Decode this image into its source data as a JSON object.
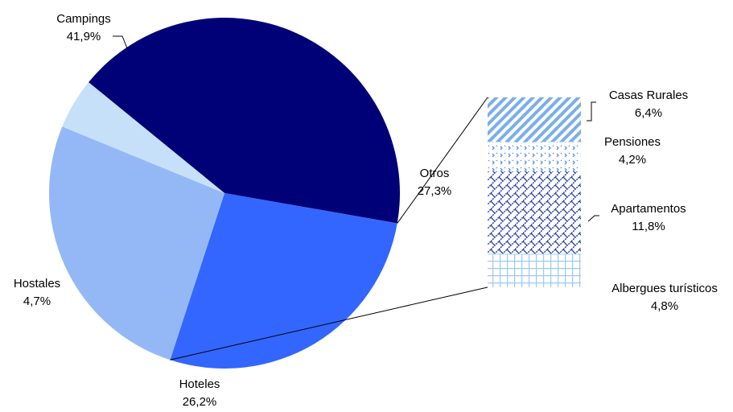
{
  "chart_data": {
    "type": "pie",
    "slices": [
      {
        "label": "Campings",
        "value": 41.9,
        "value_label": "41,9%",
        "color": "#000077"
      },
      {
        "label": "Otros",
        "value": 27.3,
        "value_label": "27,3%",
        "color": "#3366ff"
      },
      {
        "label": "Hoteles",
        "value": 26.2,
        "value_label": "26,2%",
        "color": "#94b8f6"
      },
      {
        "label": "Hostales",
        "value": 4.7,
        "value_label": "4,7%",
        "color": "#c6e0fa"
      }
    ],
    "breakdown": {
      "of": "Otros",
      "type": "stacked-bar",
      "segments": [
        {
          "label": "Casas Rurales",
          "value": 6.4,
          "value_label": "6,4%",
          "pattern": "diagonal-stripes",
          "color": "#7aaeea"
        },
        {
          "label": "Pensiones",
          "value": 4.2,
          "value_label": "4,2%",
          "pattern": "dots",
          "color": "#5b8ef0"
        },
        {
          "label": "Apartamentos",
          "value": 11.8,
          "value_label": "11,8%",
          "pattern": "zigzag",
          "color": "#2a3fa0"
        },
        {
          "label": "Albergues turísticos",
          "value": 4.8,
          "value_label": "4,8%",
          "pattern": "grid",
          "color": "#9ccaf2"
        }
      ]
    }
  }
}
